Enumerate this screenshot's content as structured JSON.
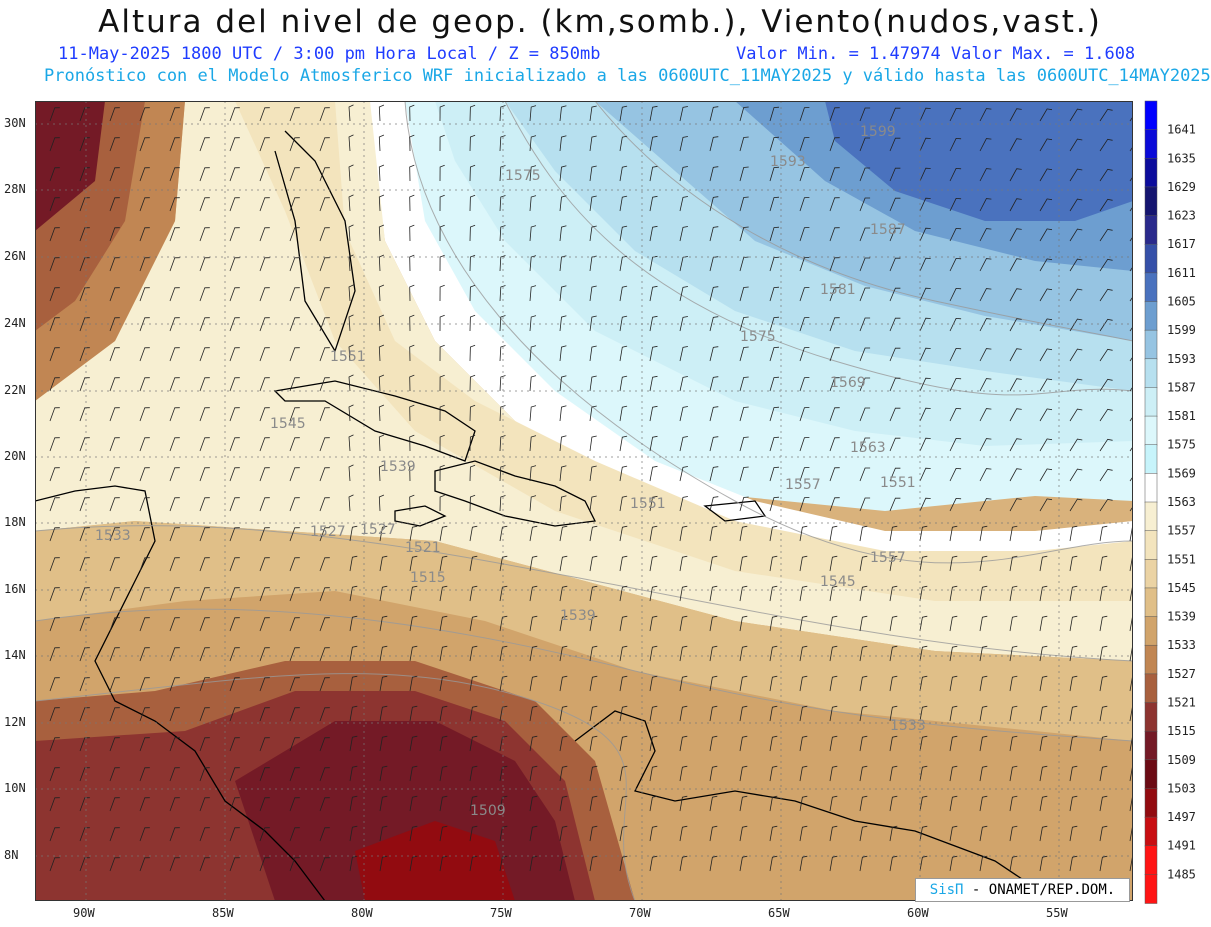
{
  "header": {
    "title": "Altura del nivel de geop. (km,somb.), Viento(nudos,vast.)",
    "date_line": "11-May-2025  1800 UTC / 3:00 pm Hora Local / Z = 850mb",
    "value_range": "Valor Min. = 1.47974  Valor Max. = 1.608",
    "forecast_line": "Pronóstico con el Modelo Atmosferico WRF inicializado a las 0600UTC_11MAY2025 y válido hasta las  0600UTC_14MAY2025"
  },
  "map": {
    "lat_labels": [
      "30N",
      "28N",
      "26N",
      "24N",
      "22N",
      "20N",
      "18N",
      "16N",
      "14N",
      "12N",
      "10N",
      "8N"
    ],
    "lon_labels": [
      "90W",
      "85W",
      "80W",
      "75W",
      "70W",
      "65W",
      "60W",
      "55W"
    ],
    "contour_labels": [
      "1599",
      "1593",
      "1587",
      "1581",
      "1575",
      "1575",
      "1569",
      "1563",
      "1557",
      "1557",
      "1551",
      "1551",
      "1551",
      "1545",
      "1545",
      "1539",
      "1539",
      "1533",
      "1533",
      "1527",
      "1521",
      "1515",
      "1509",
      "1527"
    ],
    "credit_brand": "SisΠ",
    "credit_text": "- ONAMET/REP.DOM."
  },
  "colorbar": {
    "levels": [
      "1641",
      "1635",
      "1629",
      "1623",
      "1617",
      "1611",
      "1605",
      "1599",
      "1593",
      "1587",
      "1581",
      "1575",
      "1569",
      "1563",
      "1557",
      "1551",
      "1545",
      "1539",
      "1533",
      "1527",
      "1521",
      "1515",
      "1509",
      "1503",
      "1497",
      "1491",
      "1485"
    ],
    "colors": [
      "#0000ff",
      "#0a0ad8",
      "#0c0c9c",
      "#151570",
      "#2a2a8c",
      "#3550a8",
      "#4a72be",
      "#6d9ed0",
      "#96c4e2",
      "#b7e0ef",
      "#cdeff6",
      "#dcf7fb",
      "#c7f4fb",
      "#ffffff",
      "#f7efd2",
      "#f3e4bd",
      "#ebd3a4",
      "#e0bf88",
      "#d1a46b",
      "#c18653",
      "#a8603e",
      "#8d3430",
      "#741a26",
      "#6b0b14",
      "#920b10",
      "#c80e12",
      "#ff1414"
    ]
  }
}
